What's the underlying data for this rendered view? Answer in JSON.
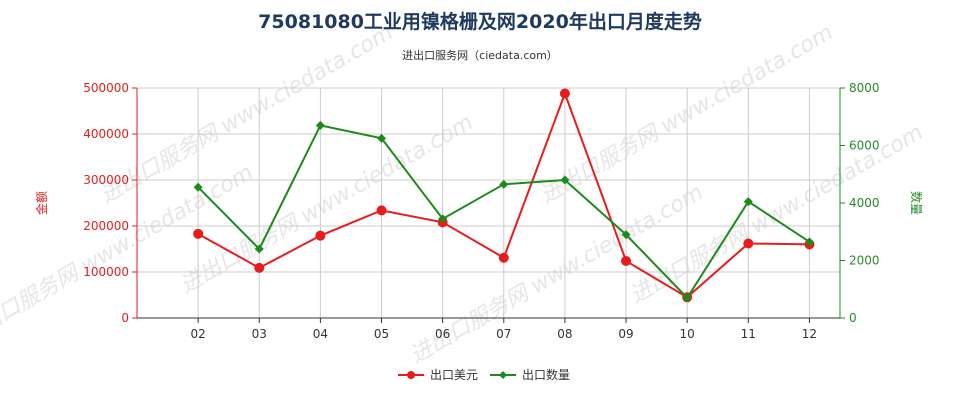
{
  "chart_data": {
    "type": "line",
    "title": "75081080工业用镍格栅及网2020年出口月度走势",
    "subtitle": "进出口服务网（ciedata.com）",
    "watermark": "进出口服务网 www.ciedata.com",
    "categories": [
      "02",
      "03",
      "04",
      "05",
      "06",
      "07",
      "08",
      "09",
      "10",
      "11",
      "12"
    ],
    "ylabel_left": "金额",
    "ylabel_right": "数量",
    "ylim_left": [
      0,
      500000
    ],
    "ylim_right": [
      0,
      8000
    ],
    "yticks_left": [
      "0",
      "100000",
      "200000",
      "300000",
      "400000",
      "500000"
    ],
    "yticks_right": [
      "0",
      "2000",
      "4000",
      "6000",
      "8000"
    ],
    "grid": true,
    "legend_position": "bottom",
    "series": [
      {
        "name": "出口美元",
        "axis": "left",
        "color": "#e81c1c",
        "values": [
          183000,
          109000,
          179000,
          234000,
          208000,
          131000,
          488000,
          124000,
          45000,
          162000,
          160000
        ]
      },
      {
        "name": "出口数量",
        "axis": "right",
        "color": "#1e8a1e",
        "values": [
          4550,
          2400,
          6700,
          6250,
          3450,
          4650,
          4800,
          2900,
          700,
          4050,
          2650
        ]
      }
    ]
  }
}
